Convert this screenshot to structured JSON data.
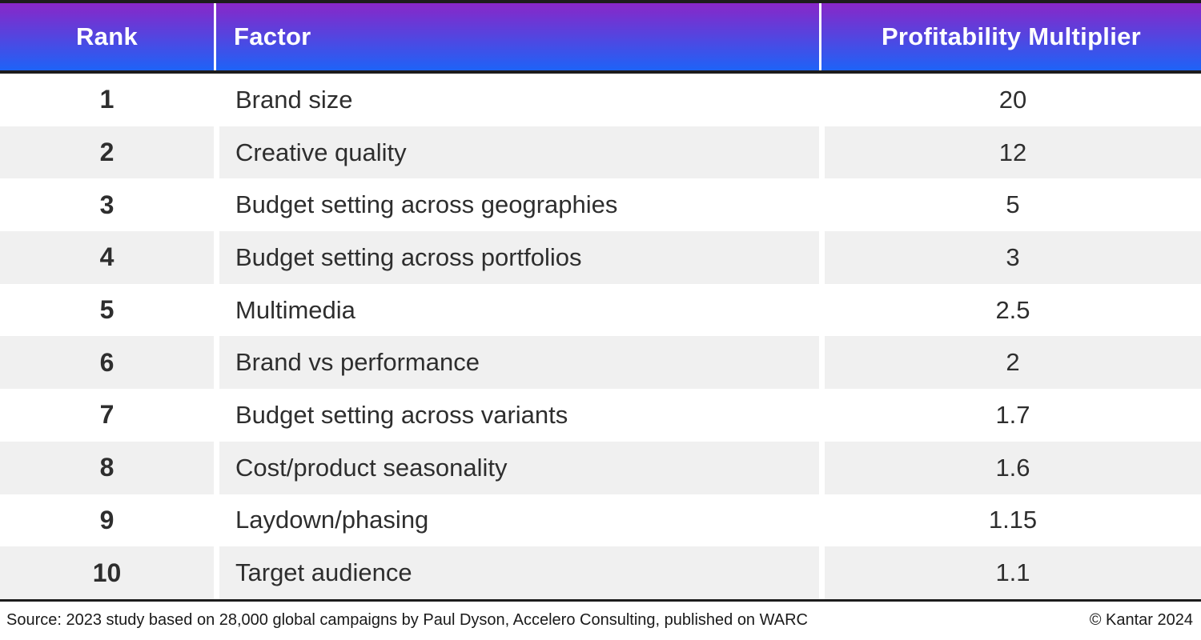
{
  "table": {
    "columns": [
      "Rank",
      "Factor",
      "Profitability Multiplier"
    ],
    "rows": [
      {
        "rank": "1",
        "factor": "Brand size",
        "multiplier": "20"
      },
      {
        "rank": "2",
        "factor": "Creative quality",
        "multiplier": "12"
      },
      {
        "rank": "3",
        "factor": "Budget setting across geographies",
        "multiplier": "5"
      },
      {
        "rank": "4",
        "factor": "Budget setting across portfolios",
        "multiplier": "3"
      },
      {
        "rank": "5",
        "factor": "Multimedia",
        "multiplier": "2.5"
      },
      {
        "rank": "6",
        "factor": "Brand vs performance",
        "multiplier": "2"
      },
      {
        "rank": "7",
        "factor": "Budget setting across variants",
        "multiplier": "1.7"
      },
      {
        "rank": "8",
        "factor": "Cost/product seasonality",
        "multiplier": "1.6"
      },
      {
        "rank": "9",
        "factor": "Laydown/phasing",
        "multiplier": "1.15"
      },
      {
        "rank": "10",
        "factor": "Target audience",
        "multiplier": "1.1"
      }
    ]
  },
  "footer": {
    "source": "Source: 2023 study based on 28,000 global campaigns by Paul Dyson, Accelero Consulting, published on WARC",
    "copyright": "© Kantar 2024"
  },
  "colors": {
    "header_gradient_top": "#8927C8",
    "header_gradient_bottom": "#1E63F7",
    "header_text": "#FFFFFF",
    "row_alt_background": "#F0F0F0",
    "row_background": "#FFFFFF",
    "border_dark": "#1C1C1C",
    "body_text": "#2E2E2E"
  },
  "chart_data": {
    "type": "table",
    "title": "",
    "columns": [
      "Rank",
      "Factor",
      "Profitability Multiplier"
    ],
    "rows": [
      [
        1,
        "Brand size",
        20
      ],
      [
        2,
        "Creative quality",
        12
      ],
      [
        3,
        "Budget setting across geographies",
        5
      ],
      [
        4,
        "Budget setting across portfolios",
        3
      ],
      [
        5,
        "Multimedia",
        2.5
      ],
      [
        6,
        "Brand vs performance",
        2
      ],
      [
        7,
        "Budget setting across variants",
        1.7
      ],
      [
        8,
        "Cost/product seasonality",
        1.6
      ],
      [
        9,
        "Laydown/phasing",
        1.15
      ],
      [
        10,
        "Target audience",
        1.1
      ]
    ],
    "source": "Source: 2023 study based on 28,000 global campaigns by Paul Dyson, Accelero Consulting, published on WARC",
    "attribution": "© Kantar 2024"
  }
}
